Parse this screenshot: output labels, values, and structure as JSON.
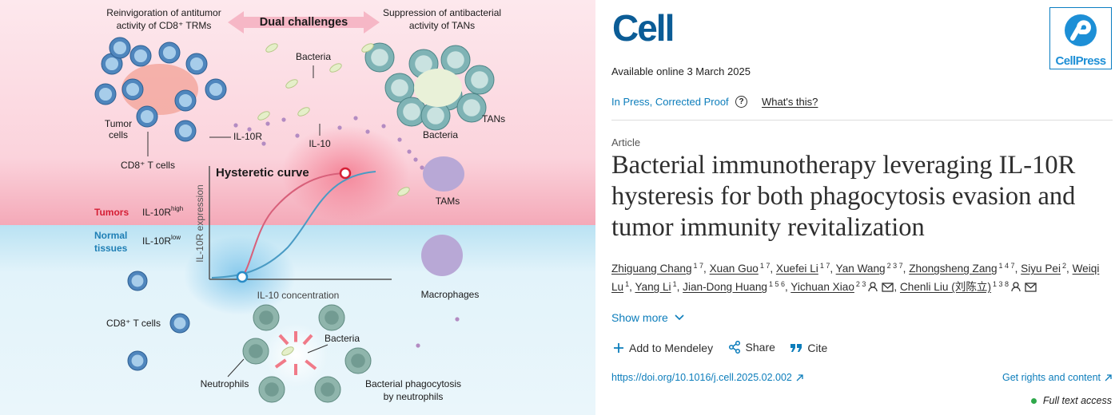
{
  "graphical_abstract": {
    "top_left": [
      "Reinvigoration of antitumor",
      "activity of CD8⁺ TRMs"
    ],
    "dual": "Dual challenges",
    "top_right": [
      "Suppression of antibacterial",
      "activity of TANs"
    ],
    "bacteria_top": "Bacteria",
    "tumor_cells": [
      "Tumor",
      "cells"
    ],
    "cd8_top": "CD8⁺ T cells",
    "il10r": "IL-10R",
    "il10": "IL-10",
    "tans": "TANs",
    "bacteria_tans": "Bacteria",
    "tams": "TAMs",
    "curve_title": "Hysteretic curve",
    "tumors": "Tumors",
    "tumors_marker": {
      "base": "IL-10R",
      "sup": "high"
    },
    "normal": [
      "Normal",
      "tissues"
    ],
    "normal_marker": {
      "base": "IL-10R",
      "sup": "low"
    },
    "y_axis": "IL-10R expression",
    "x_axis": "IL-10 concentration",
    "macrophages": "Macrophages",
    "cd8_bottom": "CD8⁺ T cells",
    "bacteria_bottom": "Bacteria",
    "neutrophils": "Neutrophils",
    "phagocytosis": [
      "Bacterial phagocytosis",
      "by neutrophils"
    ]
  },
  "header": {
    "journal": "Cell",
    "publisher": "CellPress"
  },
  "availability": "Available online 3 March 2025",
  "status": "In Press, Corrected Proof",
  "help": "?",
  "whats_this": "What's this?",
  "article_type": "Article",
  "title": "Bacterial immunotherapy leveraging IL-10R hysteresis for both phagocytosis evasion and tumor immunity revitalization",
  "author_separator": ",",
  "authors": [
    {
      "name": "Zhiguang Chang",
      "affiliations": "1 7"
    },
    {
      "name": "Xuan Guo",
      "affiliations": "1 7"
    },
    {
      "name": "Xuefei Li",
      "affiliations": "1 7"
    },
    {
      "name": "Yan Wang",
      "affiliations": "2 3 7"
    },
    {
      "name": "Zhongsheng Zang",
      "affiliations": "1 4 7"
    },
    {
      "name": "Siyu Pei",
      "affiliations": "2"
    },
    {
      "name": "Weiqi Lu",
      "affiliations": "1"
    },
    {
      "name": "Yang Li",
      "affiliations": "1"
    },
    {
      "name": "Jian-Dong Huang",
      "affiliations": "1 5 6"
    },
    {
      "name": "Yichuan Xiao",
      "affiliations": "2 3",
      "corresponding": true
    },
    {
      "name": "Chenli Liu (刘陈立)",
      "affiliations": "1 3 8",
      "corresponding": true
    }
  ],
  "show_more": "Show more",
  "actions": [
    "Add to Mendeley",
    "Share",
    "Cite"
  ],
  "doi": "https://doi.org/10.1016/j.cell.2025.02.002",
  "rights": "Get rights and content",
  "access": "Full text access"
}
